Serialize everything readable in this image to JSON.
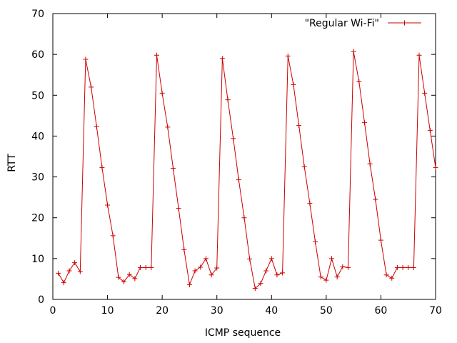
{
  "colors": {
    "series": "#cc0000",
    "axis": "#000000",
    "background": "#ffffff"
  },
  "chart_data": {
    "type": "line",
    "title": "",
    "xlabel": "ICMP sequence",
    "ylabel": "RTT",
    "xlim": [
      0,
      70
    ],
    "ylim": [
      0,
      70
    ],
    "xticks": [
      0,
      10,
      20,
      30,
      40,
      50,
      60,
      70
    ],
    "yticks": [
      0,
      10,
      20,
      30,
      40,
      50,
      60,
      70
    ],
    "grid": false,
    "legend_position": "top-right",
    "markers": "plus",
    "series": [
      {
        "name": "\"Regular Wi-Fi\"",
        "x": [
          1,
          2,
          3,
          4,
          5,
          6,
          7,
          8,
          9,
          10,
          11,
          12,
          13,
          14,
          15,
          16,
          17,
          18,
          19,
          20,
          21,
          22,
          23,
          24,
          25,
          26,
          27,
          28,
          29,
          30,
          31,
          32,
          33,
          34,
          35,
          36,
          37,
          38,
          39,
          40,
          41,
          42,
          43,
          44,
          45,
          46,
          47,
          48,
          49,
          50,
          51,
          52,
          53,
          54,
          55,
          56,
          57,
          58,
          59,
          60,
          61,
          62,
          63,
          64,
          65,
          66,
          67,
          68,
          69,
          70
        ],
        "values": [
          6.4,
          4.1,
          7.0,
          9.0,
          6.8,
          58.8,
          52.0,
          42.3,
          32.3,
          23.1,
          15.6,
          5.4,
          4.3,
          6.1,
          5.1,
          7.8,
          7.8,
          7.8,
          59.8,
          50.5,
          42.2,
          32.1,
          22.3,
          12.2,
          3.6,
          7.0,
          7.9,
          10.0,
          6.0,
          7.7,
          59.0,
          48.9,
          39.4,
          29.3,
          20.0,
          9.9,
          2.7,
          3.9,
          7.0,
          10.0,
          6.0,
          6.5,
          59.6,
          52.6,
          42.6,
          32.5,
          23.5,
          14.1,
          5.5,
          4.7,
          10.0,
          5.5,
          8.0,
          7.8,
          60.7,
          53.3,
          43.3,
          33.2,
          24.5,
          14.5,
          6.0,
          5.2,
          7.8,
          7.8,
          7.8,
          7.8,
          59.8,
          50.5,
          41.4,
          32.3
        ]
      }
    ]
  }
}
